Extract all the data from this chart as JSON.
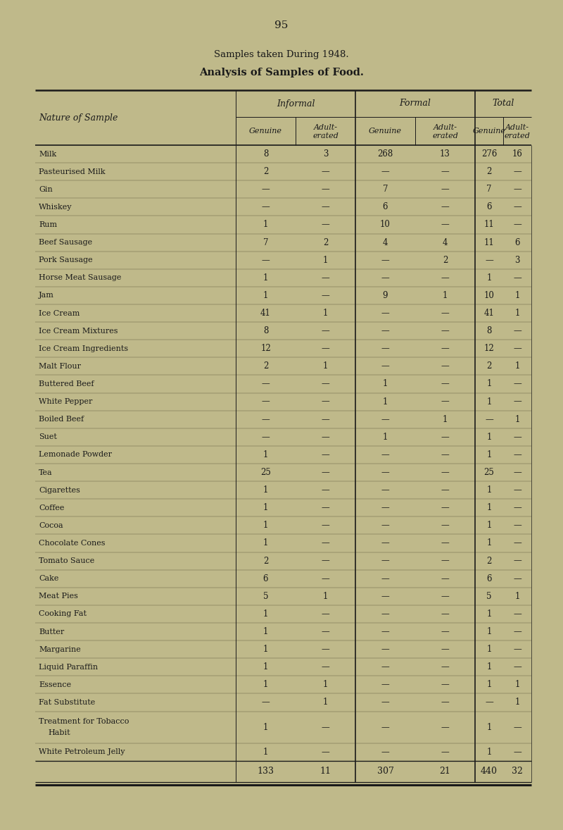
{
  "page_number": "95",
  "title1": "Samples taken During 1948.",
  "title2": "Analysis of Samples of Food.",
  "bg_color": "#bfb98a",
  "text_color": "#1a1a1a",
  "rows": [
    [
      "Milk",
      "8",
      "3",
      "268",
      "13",
      "276",
      "16"
    ],
    [
      "Pasteurised Milk",
      "2",
      "—",
      "—",
      "—",
      "2",
      "—"
    ],
    [
      "Gin",
      "—",
      "—",
      "7",
      "—",
      "7",
      "—"
    ],
    [
      "Whiskey",
      "—",
      "—",
      "6",
      "—",
      "6",
      "—"
    ],
    [
      "Rum",
      "1",
      "—",
      "10",
      "—",
      "11",
      "—"
    ],
    [
      "Beef Sausage",
      "7",
      "2",
      "4",
      "4",
      "11",
      "6"
    ],
    [
      "Pork Sausage",
      "—",
      "1",
      "—",
      "2",
      "—",
      "3"
    ],
    [
      "Horse Meat Sausage",
      "1",
      "—",
      "—",
      "—",
      "1",
      "—"
    ],
    [
      "Jam",
      "1",
      "—",
      "9",
      "1",
      "10",
      "1"
    ],
    [
      "Ice Cream",
      "41",
      "1",
      "—",
      "—",
      "41",
      "1"
    ],
    [
      "Ice Cream Mixtures",
      "8",
      "—",
      "—",
      "—",
      "8",
      "—"
    ],
    [
      "Ice Cream Ingredients",
      "12",
      "—",
      "—",
      "—",
      "12",
      "—"
    ],
    [
      "Malt Flour",
      "2",
      "1",
      "—",
      "—",
      "2",
      "1"
    ],
    [
      "Buttered Beef",
      "—",
      "—",
      "1",
      "—",
      "1",
      "—"
    ],
    [
      "White Pepper",
      "—",
      "—",
      "1",
      "—",
      "1",
      "—"
    ],
    [
      "Boiled Beef",
      "—",
      "—",
      "—",
      "1",
      "—",
      "1"
    ],
    [
      "Suet",
      "—",
      "—",
      "1",
      "—",
      "1",
      "—"
    ],
    [
      "Lemonade Powder",
      "1",
      "—",
      "—",
      "—",
      "1",
      "—"
    ],
    [
      "Tea",
      "25",
      "—",
      "—",
      "—",
      "25",
      "—"
    ],
    [
      "Cigarettes",
      "1",
      "—",
      "—",
      "—",
      "1",
      "—"
    ],
    [
      "Coffee",
      "1",
      "—",
      "—",
      "—",
      "1",
      "—"
    ],
    [
      "Cocoa",
      "1",
      "—",
      "—",
      "—",
      "1",
      "—"
    ],
    [
      "Chocolate Cones",
      "1",
      "—",
      "—",
      "—",
      "1",
      "—"
    ],
    [
      "Tomato Sauce",
      "2",
      "—",
      "—",
      "—",
      "2",
      "—"
    ],
    [
      "Cake",
      "6",
      "—",
      "—",
      "—",
      "6",
      "—"
    ],
    [
      "Meat Pies",
      "5",
      "1",
      "—",
      "—",
      "5",
      "1"
    ],
    [
      "Cooking Fat",
      "1",
      "—",
      "—",
      "—",
      "1",
      "—"
    ],
    [
      "Butter",
      "1",
      "—",
      "—",
      "—",
      "1",
      "—"
    ],
    [
      "Margarine",
      "1",
      "—",
      "—",
      "—",
      "1",
      "—"
    ],
    [
      "Liquid Paraffin",
      "1",
      "—",
      "—",
      "—",
      "1",
      "—"
    ],
    [
      "Essence",
      "1",
      "1",
      "—",
      "—",
      "1",
      "1"
    ],
    [
      "Fat Substitute",
      "—",
      "1",
      "—",
      "—",
      "—",
      "1"
    ],
    [
      "Treatment for Tobacco\nHabit",
      "1",
      "—",
      "—",
      "—",
      "1",
      "—"
    ],
    [
      "White Petroleum Jelly",
      "1",
      "—",
      "—",
      "—",
      "1",
      "—"
    ]
  ],
  "totals_row": [
    "",
    "133",
    "11",
    "307",
    "21",
    "440",
    "32"
  ]
}
